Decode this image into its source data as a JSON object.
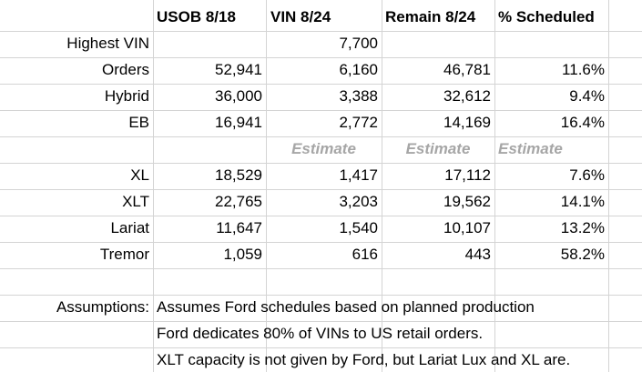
{
  "headers": [
    "USOB 8/18",
    "VIN 8/24",
    "Remain 8/24",
    "% Scheduled"
  ],
  "highest_vin": {
    "label": "Highest VIN",
    "value": "7,700"
  },
  "rows_top": [
    {
      "label": "Orders",
      "usob": "52,941",
      "vin": "6,160",
      "remain": "46,781",
      "pct": "11.6%"
    },
    {
      "label": "Hybrid",
      "usob": "36,000",
      "vin": "3,388",
      "remain": "32,612",
      "pct": "9.4%"
    },
    {
      "label": "EB",
      "usob": "16,941",
      "vin": "2,772",
      "remain": "14,169",
      "pct": "16.4%"
    }
  ],
  "estimate_labels": [
    "Estimate",
    "Estimate",
    "Estimate"
  ],
  "rows_trim": [
    {
      "label": "XL",
      "usob": "18,529",
      "vin": "1,417",
      "remain": "17,112",
      "pct": "7.6%"
    },
    {
      "label": "XLT",
      "usob": "22,765",
      "vin": "3,203",
      "remain": "19,562",
      "pct": "14.1%"
    },
    {
      "label": "Lariat",
      "usob": "11,647",
      "vin": "1,540",
      "remain": "10,107",
      "pct": "13.2%"
    },
    {
      "label": "Tremor",
      "usob": "1,059",
      "vin": "616",
      "remain": "443",
      "pct": "58.2%"
    }
  ],
  "assumptions": {
    "label": "Assumptions:",
    "lines": [
      "Assumes Ford schedules based on planned production",
      "Ford dedicates 80% of VINs to US retail orders.",
      "XLT capacity is not given by Ford, but Lariat Lux and XL are."
    ]
  }
}
